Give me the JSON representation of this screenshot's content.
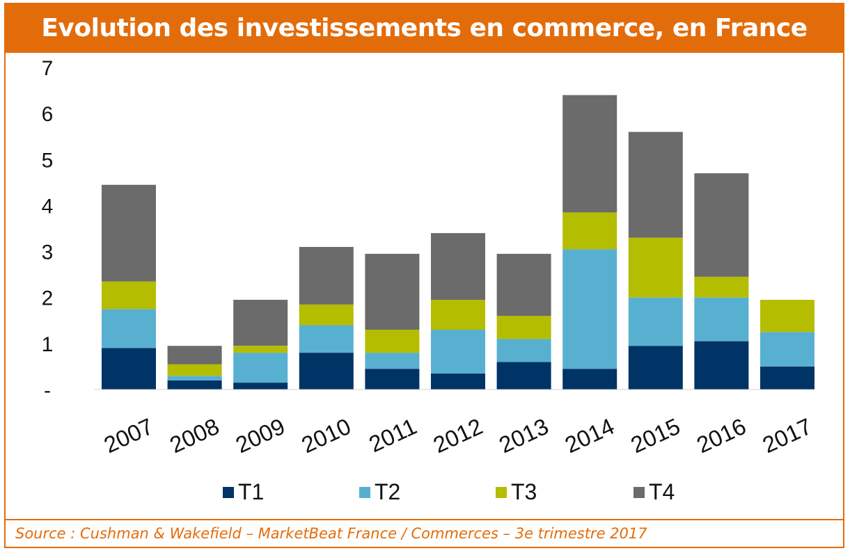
{
  "title": "Evolution des investissements en commerce, en France",
  "source": "Source : Cushman & Wakefield – MarketBeat France / Commerces – 3e trimestre 2017",
  "colors": {
    "accent": "#e36c0a",
    "T1": "#003366",
    "T2": "#58b0d0",
    "T3": "#b5bd00",
    "T4": "#6b6b6b"
  },
  "chart_data": {
    "type": "bar",
    "stacked": true,
    "categories": [
      "2007",
      "2008",
      "2009",
      "2010",
      "2011",
      "2012",
      "2013",
      "2014",
      "2015",
      "2016",
      "2017"
    ],
    "series": [
      {
        "name": "T1",
        "values": [
          0.9,
          0.2,
          0.15,
          0.8,
          0.45,
          0.35,
          0.6,
          0.45,
          0.95,
          1.05,
          0.5
        ]
      },
      {
        "name": "T2",
        "values": [
          0.85,
          0.1,
          0.65,
          0.6,
          0.35,
          0.95,
          0.5,
          2.6,
          1.05,
          0.95,
          0.75
        ]
      },
      {
        "name": "T3",
        "values": [
          0.6,
          0.25,
          0.15,
          0.45,
          0.5,
          0.65,
          0.5,
          0.8,
          1.3,
          0.45,
          0.7
        ]
      },
      {
        "name": "T4",
        "values": [
          2.1,
          0.4,
          1.0,
          1.25,
          1.65,
          1.45,
          1.35,
          2.55,
          2.3,
          2.25,
          0
        ]
      }
    ],
    "yticks": [
      "-",
      "1",
      "2",
      "3",
      "4",
      "5",
      "6",
      "7"
    ],
    "ylim": [
      0,
      7
    ],
    "xlabel": "",
    "ylabel": "",
    "legend": "bottom",
    "grid": false
  }
}
